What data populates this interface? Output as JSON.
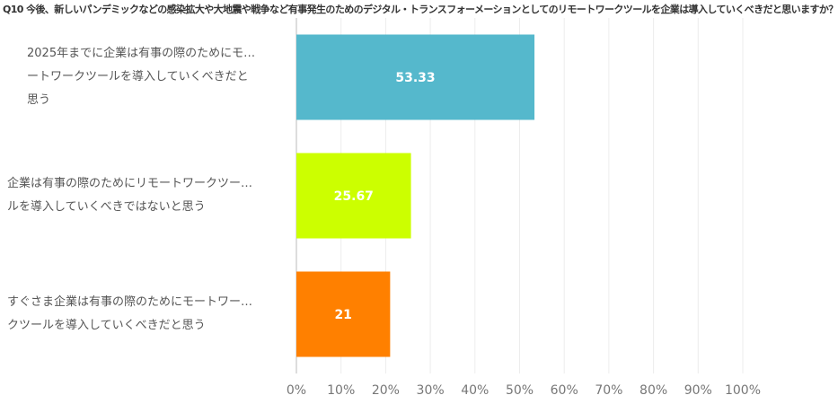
{
  "chart_data": {
    "type": "bar",
    "orientation": "horizontal",
    "title": "Q10 今後、新しいパンデミックなどの感染拡大や大地震や戦争など有事発生のためのデジタル・トランスフォーメーションとしてのリモートワークツールを企業は導入していくべきだと思いますか？",
    "categories": [
      {
        "lines": [
          "2025年までに企業は有事の際のためにモ…",
          "ートワークツールを導入していくべきだと",
          "思う"
        ]
      },
      {
        "lines": [
          "企業は有事の際のためにリモートワークツー…",
          "ルを導入していくべきではないと思う"
        ]
      },
      {
        "lines": [
          "すぐさま企業は有事の際のためにモートワー…",
          "クツールを導入していくべきだと思う"
        ]
      }
    ],
    "values": [
      53.33,
      25.67,
      21
    ],
    "value_labels": [
      "53.33",
      "25.67",
      "21"
    ],
    "colors": [
      "#55b8cc",
      "#ccff00",
      "#ff8000"
    ],
    "xlim": [
      0,
      100
    ],
    "xticks": [
      "0%",
      "10%",
      "20%",
      "30%",
      "40%",
      "50%",
      "60%",
      "70%",
      "80%",
      "90%",
      "100%"
    ],
    "grid": true,
    "legend": "none"
  }
}
